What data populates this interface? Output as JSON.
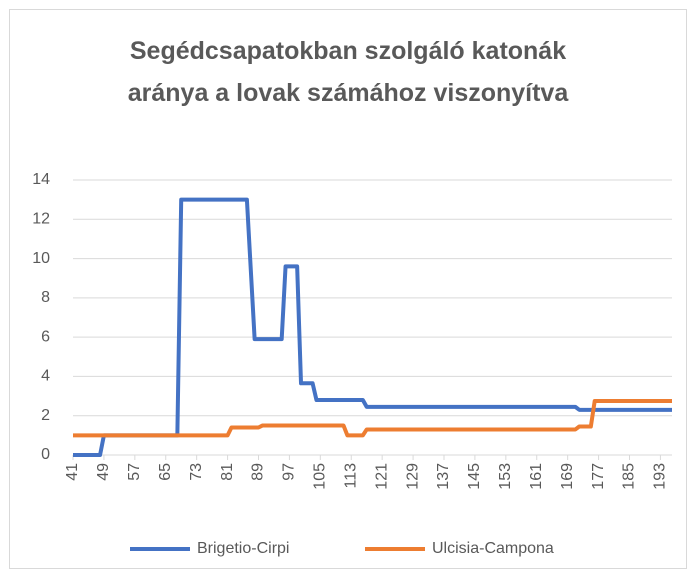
{
  "chart_data": {
    "type": "line",
    "title": "Segédcsapatokban szolgáló katonák aránya a lovak számához viszonyítva",
    "x": [
      41,
      48,
      49,
      68,
      69,
      81,
      82,
      86,
      88,
      89,
      90,
      95,
      96,
      99,
      100,
      103,
      104,
      111,
      112,
      115,
      116,
      117,
      171,
      172,
      175,
      176,
      196
    ],
    "series": [
      {
        "name": "Brigetio-Cirpi",
        "color": "#4472c4",
        "values": [
          0,
          0,
          1,
          1,
          13,
          13,
          13,
          13,
          5.9,
          5.9,
          5.9,
          5.9,
          9.6,
          9.6,
          3.65,
          3.65,
          2.8,
          2.8,
          2.8,
          2.8,
          2.8,
          2.45,
          2.45,
          2.3,
          2.3,
          2.3,
          2.3
        ]
      },
      {
        "name": "Ulcisia-Campona",
        "color": "#ed7d31",
        "values": [
          1,
          1,
          1,
          1,
          1,
          1,
          1.4,
          1.4,
          1.4,
          1.4,
          1.5,
          1.5,
          1.5,
          1.5,
          1.5,
          1.5,
          1.5,
          1.5,
          1,
          1,
          1,
          1.3,
          1.3,
          1.45,
          1.45,
          2.75,
          2.75
        ]
      }
    ],
    "xlim": [
      41,
      196
    ],
    "xticks": [
      41,
      49,
      57,
      65,
      73,
      81,
      89,
      97,
      105,
      113,
      121,
      129,
      137,
      145,
      153,
      161,
      169,
      177,
      185,
      193
    ],
    "ylim": [
      0,
      14
    ],
    "yticks": [
      0,
      2,
      4,
      6,
      8,
      10,
      12,
      14
    ],
    "grid": true,
    "legend": "bottom"
  }
}
